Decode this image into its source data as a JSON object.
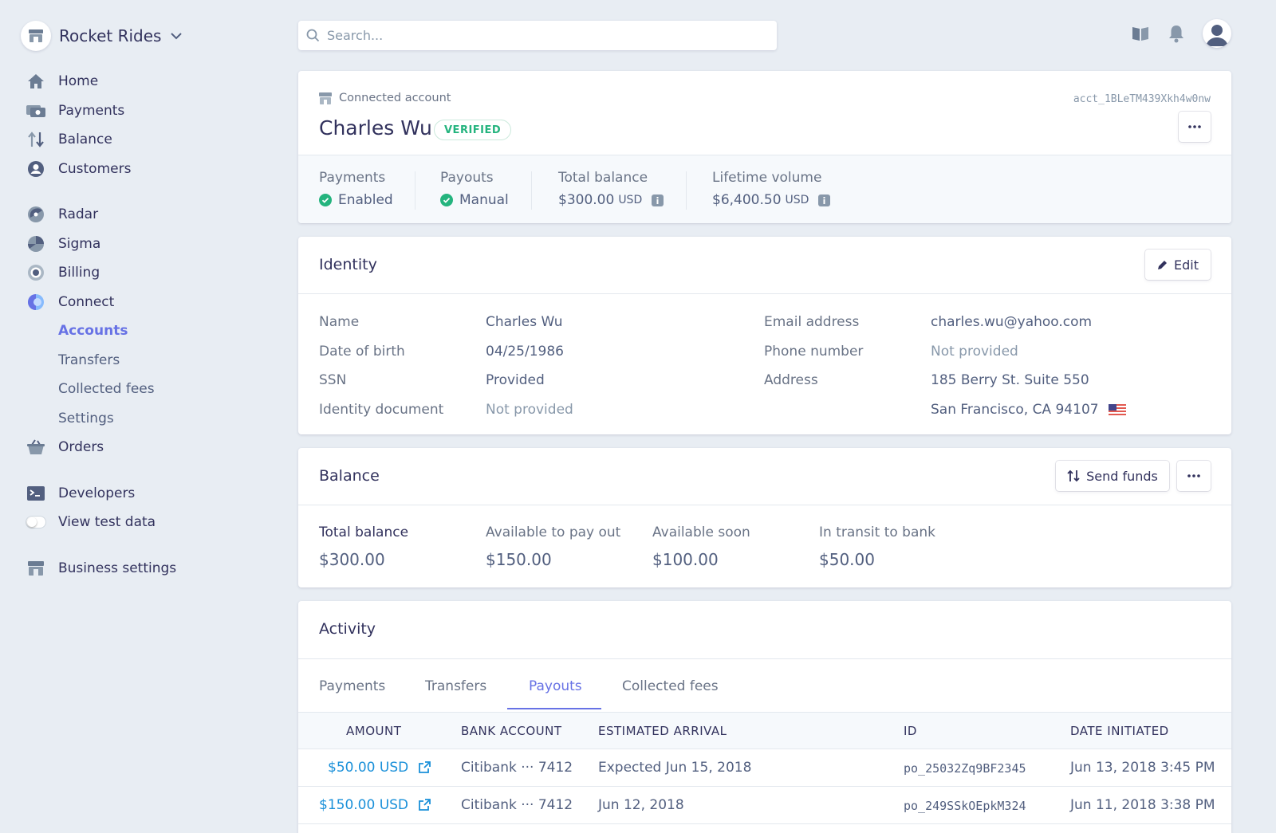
{
  "brand": {
    "name": "Rocket Rides"
  },
  "nav": {
    "home": "Home",
    "payments": "Payments",
    "balance": "Balance",
    "customers": "Customers",
    "radar": "Radar",
    "sigma": "Sigma",
    "billing": "Billing",
    "connect": "Connect",
    "accounts": "Accounts",
    "transfers": "Transfers",
    "collected_fees": "Collected fees",
    "settings": "Settings",
    "orders": "Orders",
    "developers": "Developers",
    "view_test_data": "View test data",
    "business_settings": "Business settings"
  },
  "search": {
    "placeholder": "Search..."
  },
  "account": {
    "label": "Connected account",
    "id": "acct_1BLeTM439Xkh4w0nw",
    "name": "Charles Wu",
    "status": "VERIFIED",
    "stats": {
      "payments_label": "Payments",
      "payments_value": "Enabled",
      "payouts_label": "Payouts",
      "payouts_value": "Manual",
      "total_balance_label": "Total balance",
      "total_balance_value": "$300.00",
      "total_balance_unit": "USD",
      "lifetime_label": "Lifetime volume",
      "lifetime_value": "$6,400.50",
      "lifetime_unit": "USD"
    }
  },
  "identity": {
    "title": "Identity",
    "edit_label": "Edit",
    "name_label": "Name",
    "name_value": "Charles Wu",
    "dob_label": "Date of birth",
    "dob_value": "04/25/1986",
    "ssn_label": "SSN",
    "ssn_value": "Provided",
    "doc_label": "Identity document",
    "doc_value": "Not provided",
    "email_label": "Email address",
    "email_value": "charles.wu@yahoo.com",
    "phone_label": "Phone number",
    "phone_value": "Not provided",
    "address_label": "Address",
    "address_line1": "185 Berry St. Suite 550",
    "address_line2": "San Francisco, CA 94107"
  },
  "balance": {
    "title": "Balance",
    "send_funds_label": "Send funds",
    "total_label": "Total balance",
    "total_value": "$300.00",
    "available_label": "Available to pay out",
    "available_value": "$150.00",
    "soon_label": "Available soon",
    "soon_value": "$100.00",
    "transit_label": "In transit to bank",
    "transit_value": "$50.00"
  },
  "activity": {
    "title": "Activity",
    "tabs": [
      "Payments",
      "Transfers",
      "Payouts",
      "Collected fees"
    ],
    "active_tab": "Payouts",
    "columns": [
      "AMOUNT",
      "BANK ACCOUNT",
      "ESTIMATED ARRIVAL",
      "ID",
      "DATE INITIATED"
    ],
    "rows": [
      {
        "amount": "$50.00 USD",
        "bank": "Citibank ··· 7412",
        "arrival": "Expected Jun 15, 2018",
        "id": "po_25032Zq9BF2345",
        "date": "Jun 13, 2018 3:45 PM"
      },
      {
        "amount": "$150.00 USD",
        "bank": "Citibank ··· 7412",
        "arrival": "Jun 12, 2018",
        "id": "po_249SSkOEpkM324",
        "date": "Jun 11, 2018 3:38 PM"
      }
    ]
  },
  "colors": {
    "accent": "#6772e5",
    "link": "#1a90d9",
    "success": "#24b47e",
    "background": "#e8edf3"
  }
}
